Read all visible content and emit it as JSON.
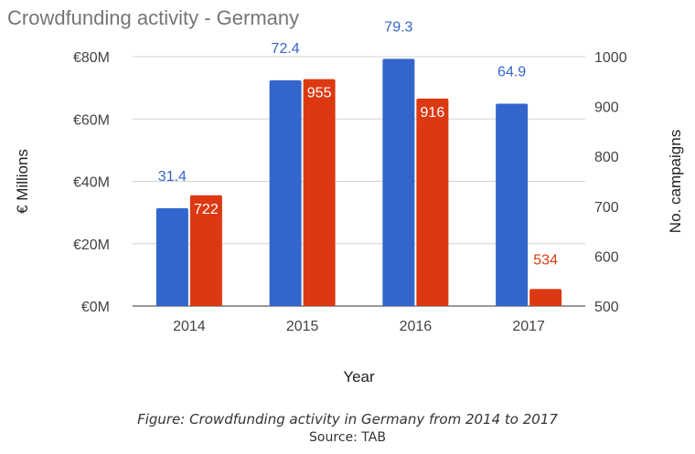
{
  "chart_data": {
    "type": "bar",
    "title": "Crowdfunding activity - Germany",
    "xlabel": "Year",
    "ylabel": "€ Millions",
    "y2label": "No. campaigns",
    "categories": [
      "2014",
      "2015",
      "2016",
      "2017"
    ],
    "ylim": [
      0,
      80
    ],
    "y2lim": [
      500,
      1000
    ],
    "y_ticks": [
      0,
      20,
      40,
      60,
      80
    ],
    "y_tick_labels": [
      "€0M",
      "€20M",
      "€40M",
      "€60M",
      "€80M"
    ],
    "y2_ticks": [
      500,
      600,
      700,
      800,
      900,
      1000
    ],
    "y2_tick_labels": [
      "500",
      "600",
      "700",
      "800",
      "900",
      "1000"
    ],
    "series": [
      {
        "values": [
          31.4,
          72.4,
          79.3,
          64.9
        ],
        "labels": [
          "31.4",
          "72.4",
          "79.3",
          "64.9"
        ],
        "color": "#3366cc",
        "axis": "left"
      },
      {
        "values": [
          722,
          955,
          916,
          534
        ],
        "labels": [
          "722",
          "955",
          "916",
          "534"
        ],
        "color": "#dc3912",
        "axis": "right"
      }
    ],
    "grid": true
  },
  "caption": {
    "line1": "Figure: Crowdfunding activity in Germany from 2014 to 2017",
    "line2": "Source: TAB"
  }
}
